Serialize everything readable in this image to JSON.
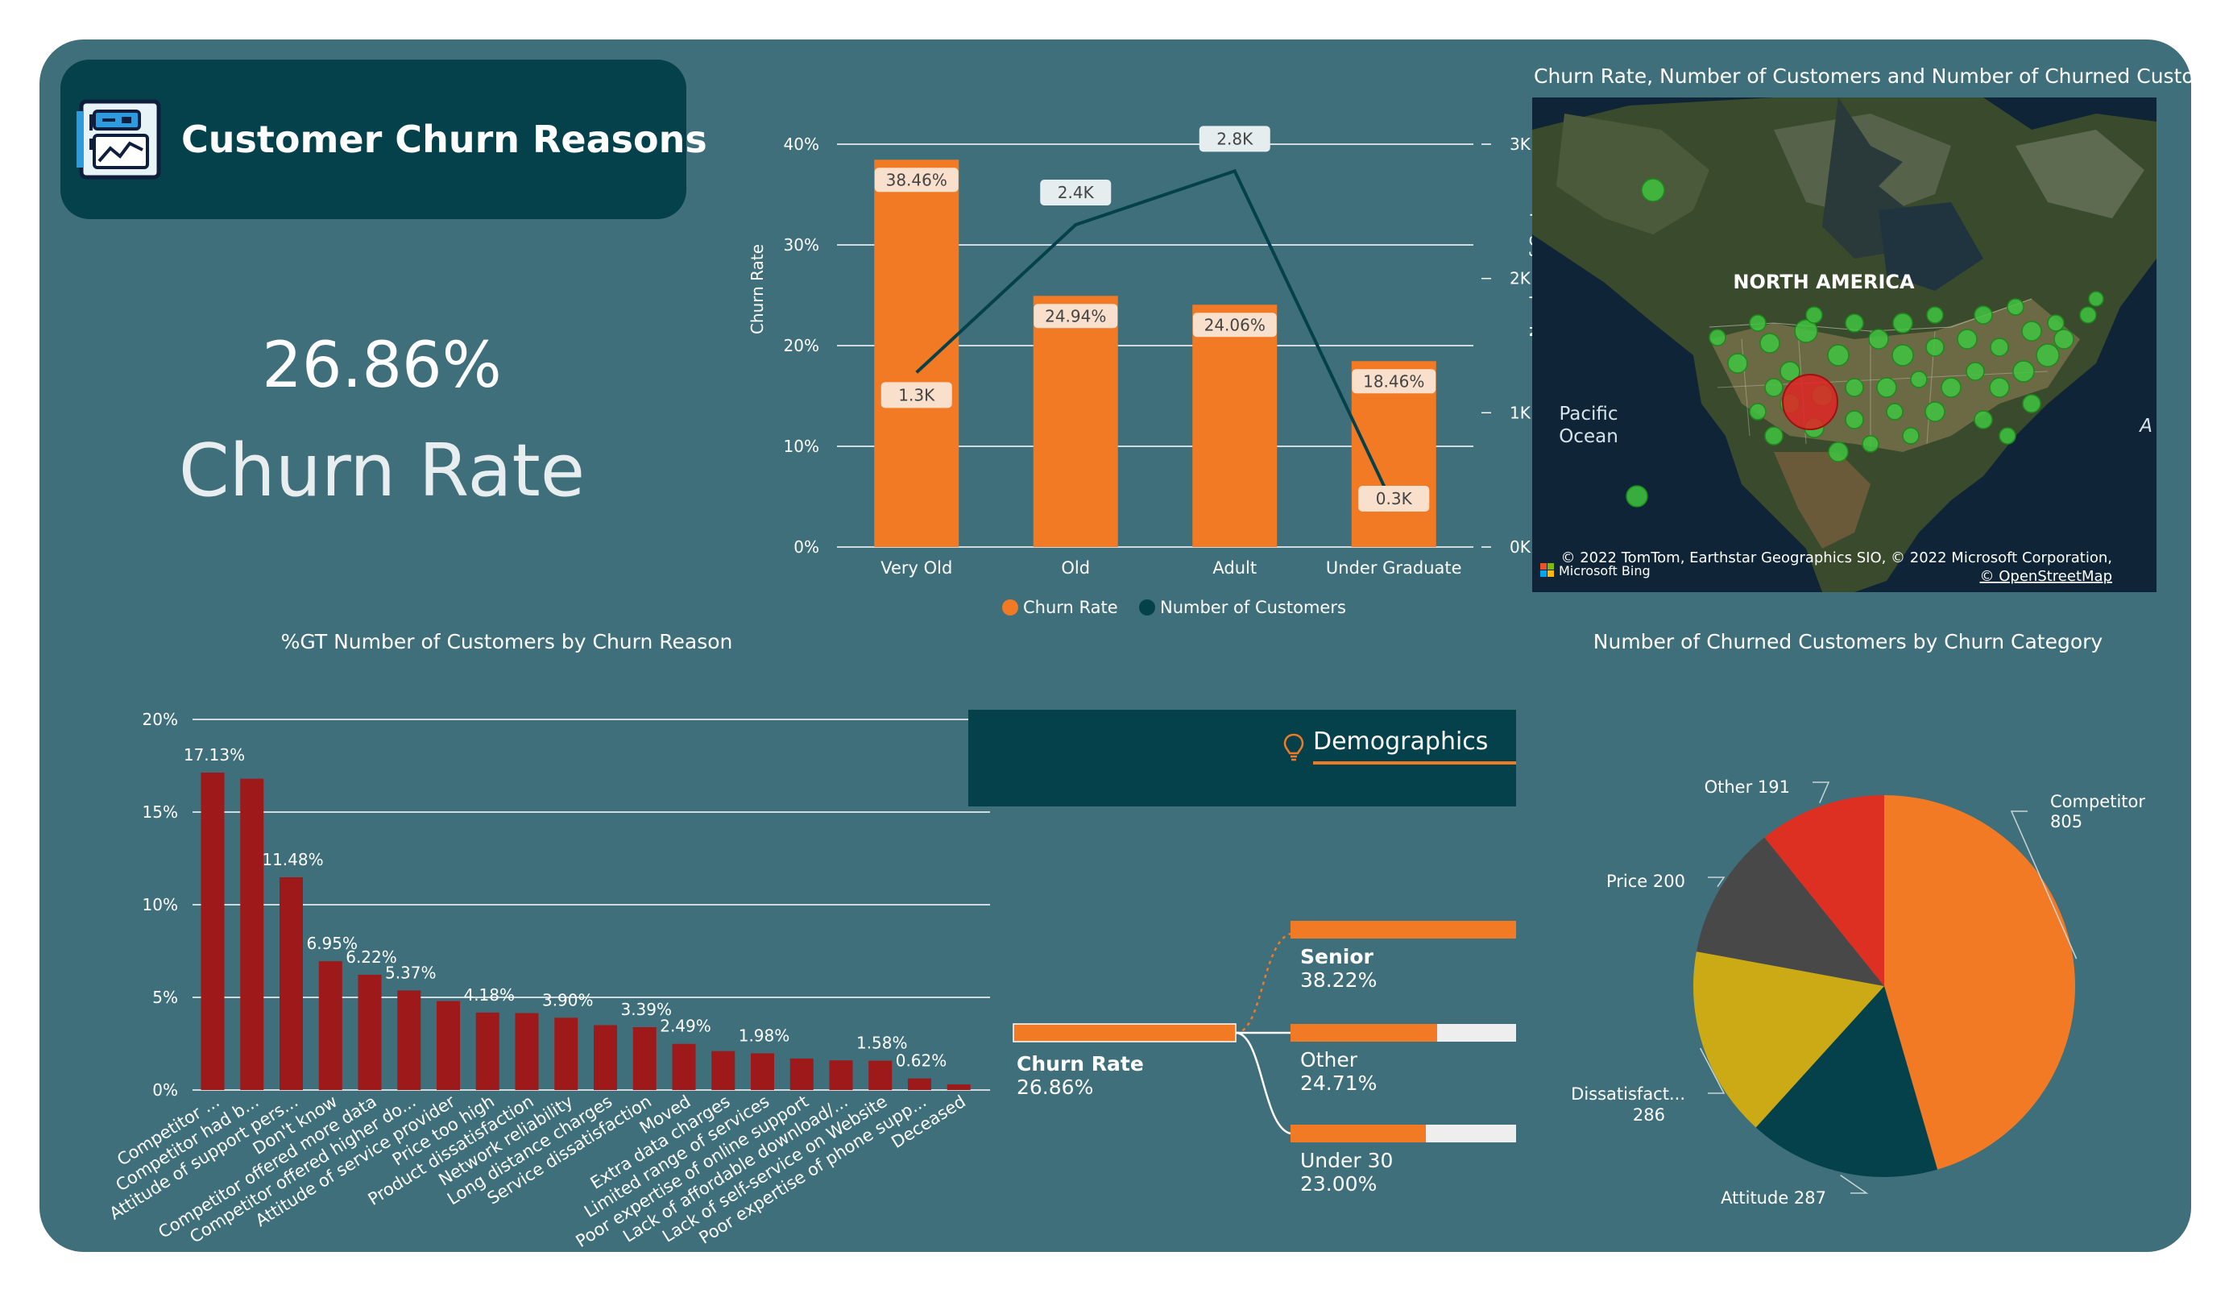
{
  "title_card": {
    "title": "Customer Churn Reasons",
    "icon": "dashboard-chart-icon"
  },
  "kpi": {
    "value": "26.86%",
    "label": "Churn Rate"
  },
  "colors": {
    "background": "#3e6f7a",
    "dark": "#04414b",
    "orange": "#f27a24",
    "red_bar": "#9e1a1a",
    "green_dot": "#3fc43f",
    "red_dot": "#e02424"
  },
  "chart_data": [
    {
      "type": "bar",
      "categories": [
        "Very Old",
        "Old",
        "Adult",
        "Under Graduate"
      ],
      "series": [
        {
          "name": "Churn Rate",
          "values": [
            38.46,
            24.94,
            24.06,
            18.46
          ],
          "labels": [
            "38.46%",
            "24.94%",
            "24.06%",
            "18.46%"
          ],
          "color": "#f27a24",
          "axis": "left",
          "kind": "bar"
        },
        {
          "name": "Number of Customers",
          "values": [
            1300,
            2400,
            2800,
            300
          ],
          "labels": [
            "1.3K",
            "2.4K",
            "2.8K",
            "0.3K"
          ],
          "color": "#04414b",
          "axis": "right",
          "kind": "line"
        }
      ],
      "ylabel": "Churn Rate",
      "y2label": "Number of Customers",
      "ylim": [
        0,
        40
      ],
      "yticks": [
        "0%",
        "10%",
        "20%",
        "30%",
        "40%"
      ],
      "y2lim": [
        0,
        3000
      ],
      "y2ticks": [
        "0K",
        "1K",
        "2K",
        "3K"
      ],
      "legend": [
        "Churn Rate",
        "Number of Customers"
      ],
      "legend_position": "bottom"
    },
    {
      "type": "bar",
      "title": "%GT Number of Customers by Churn Reason",
      "categories": [
        "Competitor ...",
        "Competitor had b...",
        "Attitude of support pers...",
        "Don't know",
        "Competitor offered more data",
        "Competitor offered higher do...",
        "Attitude of service provider",
        "Price too high",
        "Product dissatisfaction",
        "Network reliability",
        "Long distance charges",
        "Service dissatisfaction",
        "Moved",
        "Extra data charges",
        "Limited range of services",
        "Poor expertise of online support",
        "Lack of affordable download/...",
        "Lack of self-service on Website",
        "Poor expertise of phone supp...",
        "Deceased"
      ],
      "values": [
        17.13,
        16.8,
        11.48,
        6.95,
        6.22,
        5.37,
        4.8,
        4.18,
        4.15,
        3.9,
        3.5,
        3.39,
        2.49,
        2.1,
        1.98,
        1.7,
        1.6,
        1.58,
        0.62,
        0.3
      ],
      "labels": [
        "17.13%",
        "",
        "11.48%",
        "6.95%",
        "6.22%",
        "5.37%",
        "",
        "4.18%",
        "",
        "3.90%",
        "",
        "3.39%",
        "2.49%",
        "",
        "1.98%",
        "",
        "",
        "1.58%",
        "0.62%",
        ""
      ],
      "ylim": [
        0,
        20
      ],
      "yticks": [
        "0%",
        "5%",
        "10%",
        "15%",
        "20%"
      ],
      "color": "#9e1a1a"
    },
    {
      "type": "pie",
      "title": "Number of Churned Customers by Churn Category",
      "slices": [
        {
          "label": "Competitor",
          "value": 805,
          "color": "#f27a24"
        },
        {
          "label": "Attitude",
          "value": 287,
          "color": "#04414b"
        },
        {
          "label": "Dissatisfact...",
          "value": 286,
          "color": "#ccaa15"
        },
        {
          "label": "Price",
          "value": 200,
          "color": "#484848"
        },
        {
          "label": "Other",
          "value": 191,
          "color": "#dd2f22"
        }
      ]
    }
  ],
  "map": {
    "title": "Churn Rate, Number of Customers and Number of Churned Custom...",
    "labels": {
      "continent": "NORTH AMERICA",
      "ocean_line1": "Pacific",
      "ocean_line2": "Ocean",
      "partial": "A"
    },
    "attribution": "© 2022 TomTom, Earthstar Geographics SIO, © 2022 Microsoft Corporation,",
    "osm": "© OpenStreetMap",
    "bing": "Microsoft Bing"
  },
  "decomposition": {
    "header": "Demographics",
    "root": {
      "label": "Churn Rate",
      "value": "26.86%"
    },
    "nodes": [
      {
        "label": "Senior",
        "value": "38.22%",
        "fraction": 1.0
      },
      {
        "label": "Other",
        "value": "24.71%",
        "fraction": 0.65
      },
      {
        "label": "Under 30",
        "value": "23.00%",
        "fraction": 0.6
      }
    ]
  }
}
